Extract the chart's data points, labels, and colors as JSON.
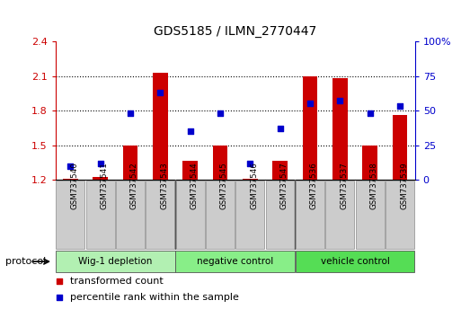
{
  "title": "GDS5185 / ILMN_2770447",
  "samples": [
    "GSM737540",
    "GSM737541",
    "GSM737542",
    "GSM737543",
    "GSM737544",
    "GSM737545",
    "GSM737546",
    "GSM737547",
    "GSM737536",
    "GSM737537",
    "GSM737538",
    "GSM737539"
  ],
  "red_values": [
    1.21,
    1.22,
    1.5,
    2.13,
    1.36,
    1.5,
    1.21,
    1.36,
    2.1,
    2.08,
    1.5,
    1.76
  ],
  "blue_values": [
    10,
    12,
    48,
    63,
    35,
    48,
    12,
    37,
    55,
    57,
    48,
    53
  ],
  "groups": [
    {
      "label": "Wig-1 depletion",
      "start": 0,
      "end": 4
    },
    {
      "label": "negative control",
      "start": 4,
      "end": 8
    },
    {
      "label": "vehicle control",
      "start": 8,
      "end": 12
    }
  ],
  "group_colors": [
    "#b2f0b2",
    "#88ee88",
    "#55dd55"
  ],
  "ylim_left": [
    1.2,
    2.4
  ],
  "ylim_right": [
    0,
    100
  ],
  "yticks_left": [
    1.2,
    1.5,
    1.8,
    2.1,
    2.4
  ],
  "yticks_right": [
    0,
    25,
    50,
    75,
    100
  ],
  "ytick_labels_right": [
    "0",
    "25",
    "50",
    "75",
    "100%"
  ],
  "bar_color": "#cc0000",
  "dot_color": "#0000cc",
  "bar_width": 0.5,
  "tick_box_color": "#cccccc",
  "tick_box_edge": "#999999",
  "protocol_label": "protocol"
}
